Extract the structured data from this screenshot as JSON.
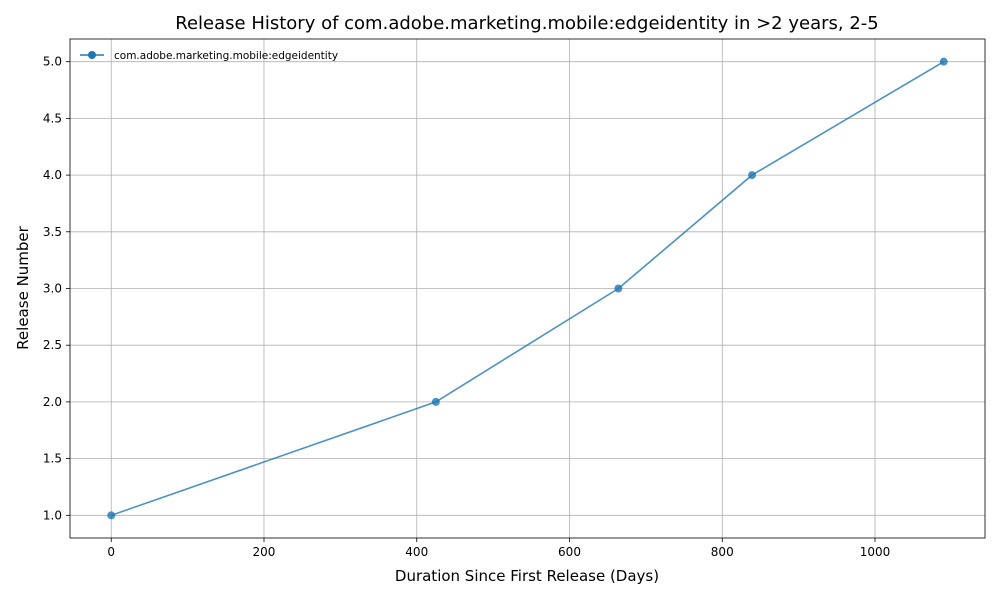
{
  "chart_data": {
    "type": "line",
    "title": "Release History of com.adobe.marketing.mobile:edgeidentity in >2 years, 2-5",
    "xlabel": "Duration Since First Release (Days)",
    "ylabel": "Release Number",
    "xlim": [
      -54,
      1144
    ],
    "ylim": [
      0.8,
      5.2
    ],
    "xticks": [
      0,
      200,
      400,
      600,
      800,
      1000
    ],
    "yticks": [
      1.0,
      1.5,
      2.0,
      2.5,
      3.0,
      3.5,
      4.0,
      4.5,
      5.0
    ],
    "xtick_labels": [
      "0",
      "200",
      "400",
      "600",
      "800",
      "1000"
    ],
    "ytick_labels": [
      "1.0",
      "1.5",
      "2.0",
      "2.5",
      "3.0",
      "3.5",
      "4.0",
      "4.5",
      "5.0"
    ],
    "grid": true,
    "legend_position": "top-left",
    "series": [
      {
        "name": "com.adobe.marketing.mobile:edgeidentity",
        "color": "#1f77b4",
        "x": [
          0,
          425,
          664,
          839,
          1090
        ],
        "y": [
          1,
          2,
          3,
          4,
          5
        ]
      }
    ]
  }
}
